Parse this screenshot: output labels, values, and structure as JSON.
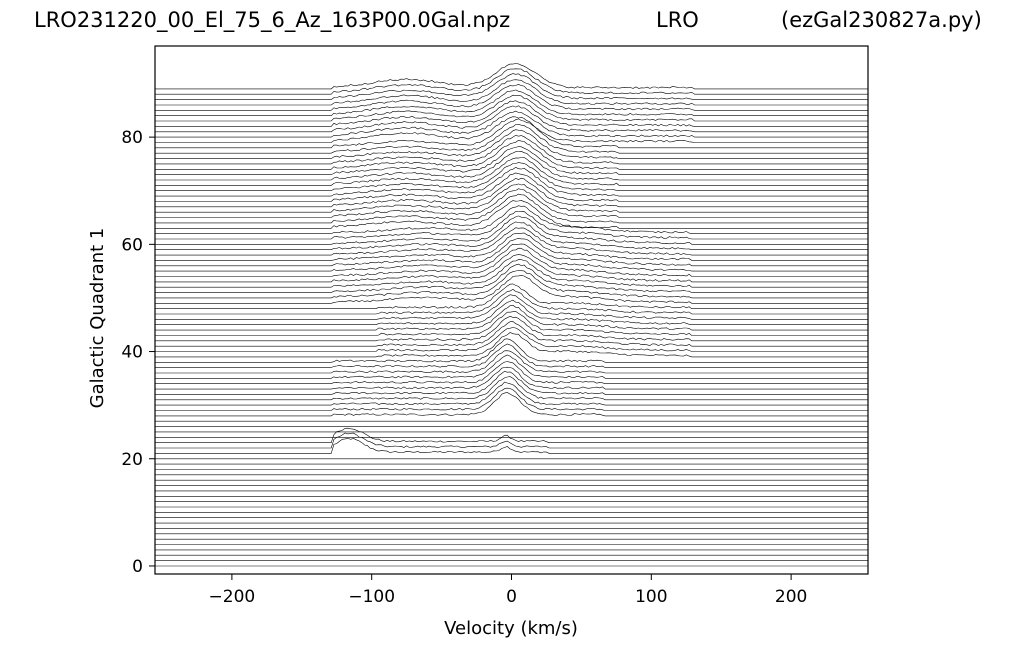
{
  "titles": {
    "left": "LRO231220_00_El_75_6_Az_163P00.0Gal.npz",
    "center": "LRO",
    "right": "(ezGal230827a.py)"
  },
  "chart_data": {
    "type": "line",
    "description": "stacked waterfall of galactic spectra",
    "xlabel": "Velocity (km/s)",
    "ylabel": "Galactic Quadrant 1",
    "xlim": [
      -255,
      255
    ],
    "ylim": [
      -1.5,
      97
    ],
    "x_ticks": [
      {
        "value": -200,
        "label": "−200"
      },
      {
        "value": -100,
        "label": "−100"
      },
      {
        "value": 0,
        "label": "0"
      },
      {
        "value": 100,
        "label": "100"
      },
      {
        "value": 200,
        "label": "200"
      }
    ],
    "y_ticks": [
      {
        "value": 0,
        "label": "0"
      },
      {
        "value": 20,
        "label": "20"
      },
      {
        "value": 40,
        "label": "40"
      },
      {
        "value": 60,
        "label": "60"
      },
      {
        "value": 80,
        "label": "80"
      }
    ],
    "n_traces": 90,
    "baseline_step": 1,
    "line_color": "#000000",
    "features": [
      {
        "from": 21,
        "to": 23,
        "x_start": -128,
        "x_end": 25,
        "peaks": [
          {
            "center": -116,
            "width": 10,
            "height": 2.5
          },
          {
            "center": -4,
            "width": 4,
            "height": 1.0
          }
        ]
      },
      {
        "from": 28,
        "to": 38,
        "x_start": -128,
        "x_end": 65,
        "peaks": [
          {
            "center": -3,
            "width": 9,
            "height": 4.0
          }
        ]
      },
      {
        "from": 39,
        "to": 48,
        "x_start": -95,
        "x_end": 128,
        "peaks": [
          {
            "center": 0,
            "width": 10,
            "height": 4.0
          },
          {
            "center": 40,
            "width": 25,
            "height": 0.8
          }
        ]
      },
      {
        "from": 49,
        "to": 62,
        "x_start": -128,
        "x_end": 128,
        "peaks": [
          {
            "center": 5,
            "width": 12,
            "height": 4.5
          },
          {
            "center": 40,
            "width": 25,
            "height": 1.0
          },
          {
            "center": -60,
            "width": 25,
            "height": 0.8
          }
        ]
      },
      {
        "from": 63,
        "to": 78,
        "x_start": -128,
        "x_end": 75,
        "peaks": [
          {
            "center": 5,
            "width": 14,
            "height": 5.0
          },
          {
            "center": -75,
            "width": 25,
            "height": 1.0
          }
        ]
      },
      {
        "from": 79,
        "to": 89,
        "x_start": -128,
        "x_end": 130,
        "peaks": [
          {
            "center": 3,
            "width": 14,
            "height": 4.5
          },
          {
            "center": -75,
            "width": 25,
            "height": 1.5
          }
        ]
      }
    ]
  }
}
